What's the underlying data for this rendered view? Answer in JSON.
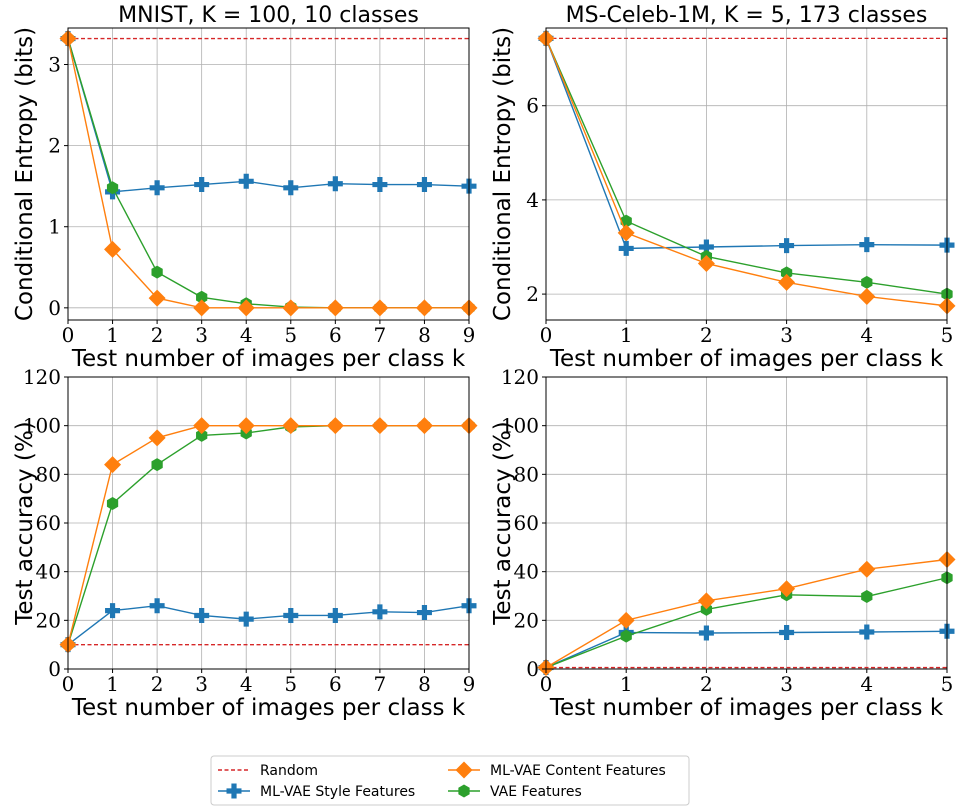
{
  "colors": {
    "random": "#d62728",
    "style": "#1f77b4",
    "content": "#ff7f0e",
    "vae": "#2ca02c",
    "grid": "#b0b0b0"
  },
  "legend": {
    "entries": [
      {
        "key": "random",
        "label": "Random",
        "marker": "none",
        "dashed": true
      },
      {
        "key": "style",
        "label": "ML-VAE Style Features",
        "marker": "plus"
      },
      {
        "key": "content",
        "label": "ML-VAE Content Features",
        "marker": "diamond"
      },
      {
        "key": "vae",
        "label": "VAE Features",
        "marker": "hexagon"
      }
    ],
    "placement": "bottom-center"
  },
  "chart_data": [
    {
      "id": "mnist-entropy",
      "type": "line",
      "title": "MNIST, K = 100, 10 classes",
      "xlabel": "Test number of images per class k",
      "ylabel": "Conditional Entropy (bits)",
      "xlim": [
        0,
        9
      ],
      "ylim": [
        -0.15,
        3.45
      ],
      "xticks": [
        0,
        1,
        2,
        3,
        4,
        5,
        6,
        7,
        8,
        9
      ],
      "yticks": [
        0,
        1,
        2,
        3
      ],
      "x": [
        0,
        1,
        2,
        3,
        4,
        5,
        6,
        7,
        8,
        9
      ],
      "random": 3.32,
      "series": [
        {
          "key": "style",
          "name": "ML-VAE Style Features",
          "values": [
            3.32,
            1.43,
            1.48,
            1.52,
            1.56,
            1.48,
            1.53,
            1.52,
            1.52,
            1.5
          ]
        },
        {
          "key": "vae",
          "name": "VAE Features",
          "values": [
            3.32,
            1.48,
            0.44,
            0.13,
            0.05,
            0.01,
            0.0,
            0.0,
            0.0,
            0.0
          ]
        },
        {
          "key": "content",
          "name": "ML-VAE Content Features",
          "values": [
            3.32,
            0.72,
            0.12,
            0.0,
            0.0,
            0.0,
            0.0,
            0.0,
            0.0,
            0.0
          ]
        }
      ]
    },
    {
      "id": "celeb-entropy",
      "type": "line",
      "title": "MS-Celeb-1M, K = 5, 173 classes",
      "xlabel": "Test number of images per class k",
      "ylabel": "Conditional Entropy (bits)",
      "xlim": [
        0,
        5
      ],
      "ylim": [
        1.45,
        7.65
      ],
      "xticks": [
        0,
        1,
        2,
        3,
        4,
        5
      ],
      "yticks": [
        2,
        4,
        6
      ],
      "x": [
        0,
        1,
        2,
        3,
        4,
        5
      ],
      "random": 7.43,
      "series": [
        {
          "key": "style",
          "name": "ML-VAE Style Features",
          "values": [
            7.43,
            2.97,
            3.0,
            3.03,
            3.05,
            3.04
          ]
        },
        {
          "key": "vae",
          "name": "VAE Features",
          "values": [
            7.43,
            3.55,
            2.8,
            2.45,
            2.25,
            2.0
          ]
        },
        {
          "key": "content",
          "name": "ML-VAE Content Features",
          "values": [
            7.43,
            3.3,
            2.65,
            2.25,
            1.95,
            1.75
          ]
        }
      ]
    },
    {
      "id": "mnist-accuracy",
      "type": "line",
      "title": "",
      "xlabel": "Test number of images per class k",
      "ylabel": "Test accuracy (%)",
      "xlim": [
        0,
        9
      ],
      "ylim": [
        0,
        120
      ],
      "xticks": [
        0,
        1,
        2,
        3,
        4,
        5,
        6,
        7,
        8,
        9
      ],
      "yticks": [
        0,
        20,
        40,
        60,
        80,
        100,
        120
      ],
      "x": [
        0,
        1,
        2,
        3,
        4,
        5,
        6,
        7,
        8,
        9
      ],
      "random": 10,
      "series": [
        {
          "key": "style",
          "name": "ML-VAE Style Features",
          "values": [
            10,
            24,
            26,
            22,
            20.5,
            22,
            22,
            23.5,
            23.2,
            26
          ]
        },
        {
          "key": "vae",
          "name": "VAE Features",
          "values": [
            10,
            68,
            84,
            96,
            97,
            99.5,
            100,
            100,
            100,
            100
          ]
        },
        {
          "key": "content",
          "name": "ML-VAE Content Features",
          "values": [
            10,
            84,
            95,
            100,
            100,
            100,
            100,
            100,
            100,
            100
          ]
        }
      ]
    },
    {
      "id": "celeb-accuracy",
      "type": "line",
      "title": "",
      "xlabel": "Test number of images per class k",
      "ylabel": "Test accuracy (%)",
      "xlim": [
        0,
        5
      ],
      "ylim": [
        0,
        120
      ],
      "xticks": [
        0,
        1,
        2,
        3,
        4,
        5
      ],
      "yticks": [
        0,
        20,
        40,
        60,
        80,
        100,
        120
      ],
      "x": [
        0,
        1,
        2,
        3,
        4,
        5
      ],
      "random": 0.6,
      "series": [
        {
          "key": "style",
          "name": "ML-VAE Style Features",
          "values": [
            0.6,
            15,
            14.8,
            15,
            15.2,
            15.5
          ]
        },
        {
          "key": "vae",
          "name": "VAE Features",
          "values": [
            0.6,
            13.5,
            24.5,
            30.5,
            29.8,
            37.5
          ]
        },
        {
          "key": "content",
          "name": "ML-VAE Content Features",
          "values": [
            0.6,
            20,
            28,
            33,
            41,
            45
          ]
        }
      ]
    }
  ]
}
